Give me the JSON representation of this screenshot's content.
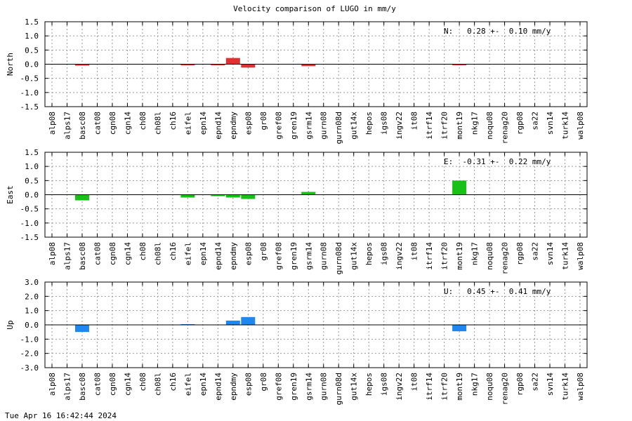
{
  "title": "Velocity comparison of LUGO in mm/y",
  "timestamp": "Tue Apr 16 16:42:44 2024",
  "chart_data": [
    {
      "type": "bar",
      "ylabel": "North",
      "ylim": [
        -1.5,
        1.5
      ],
      "yticks": [
        "-1.5",
        "-1.0",
        "-0.5",
        "0.0",
        "0.5",
        "1.0",
        "1.5"
      ],
      "color": "#e03030",
      "stat_text": "N:   0.28 +-  0.10 mm/y",
      "grid": true,
      "categories": [
        "alp08",
        "alps17",
        "basc08",
        "cat08",
        "cgn08",
        "cgn14",
        "ch08",
        "ch08l",
        "ch16",
        "eifel",
        "epn14",
        "epnd14",
        "epndmy",
        "esp08",
        "gr08",
        "gref08",
        "gren19",
        "gsrm14",
        "gurn08",
        "gurn08d",
        "gut14x",
        "hepos",
        "igs08",
        "ingv22",
        "it08",
        "itrf14",
        "itrf20",
        "mont19",
        "nkg17",
        "noqu08",
        "renag20",
        "rgp08",
        "sa22",
        "svn14",
        "turk14",
        "walp08"
      ],
      "values": [
        0,
        0,
        -0.05,
        0,
        0,
        0,
        0,
        0,
        0,
        -0.04,
        0,
        -0.03,
        0.22,
        -0.12,
        0,
        0,
        0,
        -0.07,
        0,
        0,
        0,
        0,
        0,
        0,
        0,
        0,
        0,
        -0.03,
        0,
        0,
        0,
        0,
        0,
        0,
        0,
        0
      ]
    },
    {
      "type": "bar",
      "ylabel": "East",
      "ylim": [
        -1.5,
        1.5
      ],
      "yticks": [
        "-1.5",
        "-1.0",
        "-0.5",
        "0.0",
        "0.5",
        "1.0",
        "1.5"
      ],
      "color": "#18c018",
      "stat_text": "E:  -0.31 +-  0.22 mm/y",
      "grid": true,
      "categories": [
        "alp08",
        "alps17",
        "basc08",
        "cat08",
        "cgn08",
        "cgn14",
        "ch08",
        "ch08l",
        "ch16",
        "eifel",
        "epn14",
        "epnd14",
        "epndmy",
        "esp08",
        "gr08",
        "gref08",
        "gren19",
        "gsrm14",
        "gurn08",
        "gurn08d",
        "gut14x",
        "hepos",
        "igs08",
        "ingv22",
        "it08",
        "itrf14",
        "itrf20",
        "mont19",
        "nkg17",
        "noqu08",
        "renag20",
        "rgp08",
        "sa22",
        "svn14",
        "turk14",
        "walp08"
      ],
      "values": [
        0,
        0,
        -0.2,
        0,
        0,
        0,
        0,
        0,
        0,
        -0.1,
        0,
        -0.05,
        -0.1,
        -0.15,
        0,
        0,
        0,
        0.1,
        0,
        0,
        0,
        0,
        0,
        0,
        0,
        0,
        0,
        0.5,
        0,
        0,
        0,
        0,
        0,
        0,
        0,
        0
      ]
    },
    {
      "type": "bar",
      "ylabel": "Up",
      "ylim": [
        -3.0,
        3.0
      ],
      "yticks": [
        "-3.0",
        "-2.0",
        "-1.0",
        "0.0",
        "1.0",
        "2.0",
        "3.0"
      ],
      "color": "#1e88f0",
      "stat_text": "U:   0.45 +-  0.41 mm/y",
      "grid": true,
      "categories": [
        "alp08",
        "alps17",
        "basc08",
        "cat08",
        "cgn08",
        "cgn14",
        "ch08",
        "ch08l",
        "ch16",
        "eifel",
        "epn14",
        "epnd14",
        "epndmy",
        "esp08",
        "gr08",
        "gref08",
        "gren19",
        "gsrm14",
        "gurn08",
        "gurn08d",
        "gut14x",
        "hepos",
        "igs08",
        "ingv22",
        "it08",
        "itrf14",
        "itrf20",
        "mont19",
        "nkg17",
        "noqu08",
        "renag20",
        "rgp08",
        "sa22",
        "svn14",
        "turk14",
        "walp08"
      ],
      "values": [
        0,
        0,
        -0.5,
        0,
        0,
        0,
        0,
        0,
        0,
        0.05,
        0,
        0,
        0.3,
        0.55,
        0,
        0,
        0,
        0,
        0,
        0,
        0,
        0,
        0,
        0,
        0,
        0,
        0,
        -0.45,
        0,
        0,
        0,
        0,
        0,
        0,
        0,
        0
      ]
    }
  ]
}
